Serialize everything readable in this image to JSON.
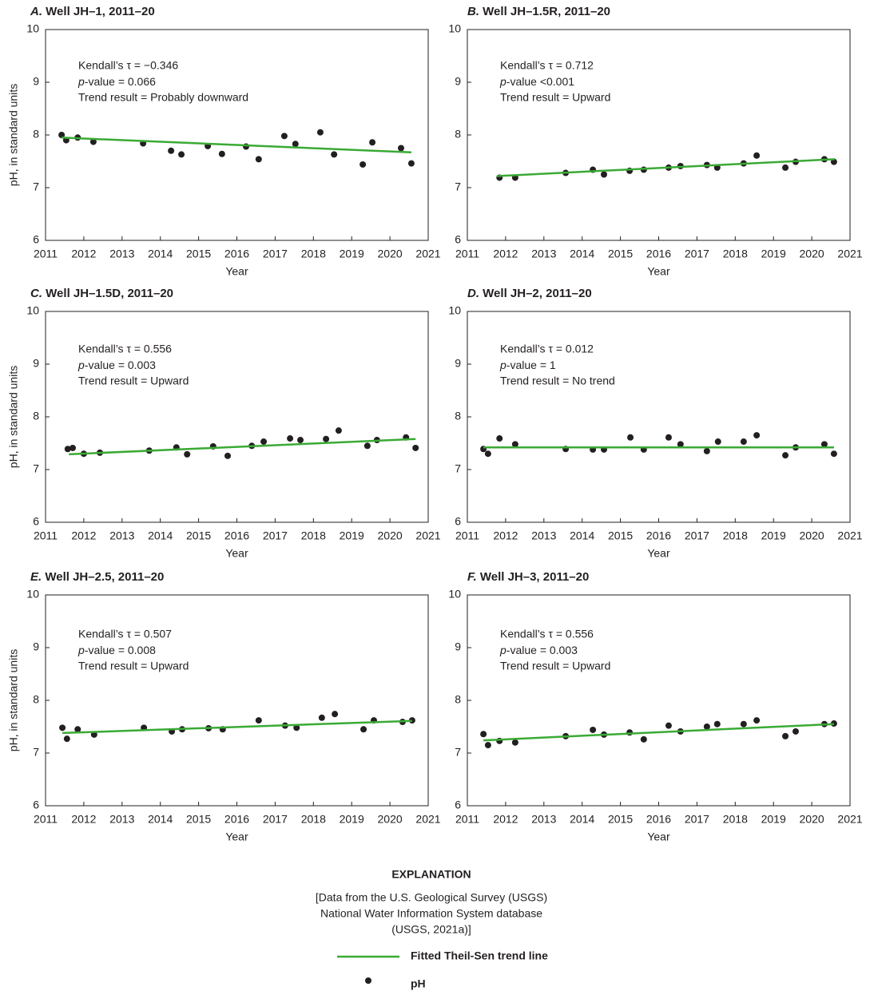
{
  "chart_data": [
    {
      "type": "scatter",
      "label": "A.",
      "title": "Well JH–1, 2011–20",
      "annotations": {
        "tau": "Kendall’s τ = −0.346",
        "p_symbol": "p",
        "p_text": "-value = 0.066",
        "trend": "Trend result = Probably downward"
      },
      "xlabel": "Year",
      "ylabel": "pH, in standard units",
      "xlim": [
        2011,
        2021
      ],
      "ylim": [
        6,
        10
      ],
      "xticks": [
        2011,
        2012,
        2013,
        2014,
        2015,
        2016,
        2017,
        2018,
        2019,
        2020,
        2021
      ],
      "yticks": [
        6,
        7,
        8,
        9,
        10
      ],
      "series": [
        {
          "type": "scatter",
          "color": "#231f20",
          "x": [
            2011.42,
            2011.54,
            2011.84,
            2012.25,
            2013.55,
            2014.28,
            2014.55,
            2015.24,
            2015.61,
            2016.24,
            2016.57,
            2017.24,
            2017.53,
            2018.18,
            2018.54,
            2019.29,
            2019.54,
            2020.29,
            2020.56
          ],
          "values": [
            8.0,
            7.9,
            7.95,
            7.87,
            7.84,
            7.7,
            7.63,
            7.79,
            7.64,
            7.78,
            7.54,
            7.98,
            7.83,
            8.05,
            7.63,
            7.44,
            7.86,
            7.75,
            7.46
          ]
        },
        {
          "type": "line",
          "color": "#3aaa35",
          "x": [
            2011.42,
            2020.56
          ],
          "values": [
            7.95,
            7.67
          ]
        }
      ]
    },
    {
      "type": "scatter",
      "label": "B.",
      "title": "Well JH–1.5R, 2011–20",
      "annotations": {
        "tau": "Kendall’s τ = 0.712",
        "p_symbol": "p",
        "p_text": "-value <0.001",
        "trend": "Trend result = Upward"
      },
      "xlabel": "Year",
      "xlim": [
        2011,
        2021
      ],
      "ylim": [
        6,
        10
      ],
      "xticks": [
        2011,
        2012,
        2013,
        2014,
        2015,
        2016,
        2017,
        2018,
        2019,
        2020,
        2021
      ],
      "yticks": [
        6,
        7,
        8,
        9,
        10
      ],
      "series": [
        {
          "type": "scatter",
          "color": "#231f20",
          "x": [
            2011.84,
            2012.25,
            2013.57,
            2014.28,
            2014.57,
            2015.24,
            2015.61,
            2016.26,
            2016.57,
            2017.26,
            2017.53,
            2018.22,
            2018.56,
            2019.31,
            2019.58,
            2020.33,
            2020.58
          ],
          "values": [
            7.19,
            7.19,
            7.28,
            7.34,
            7.25,
            7.32,
            7.34,
            7.38,
            7.41,
            7.43,
            7.38,
            7.46,
            7.61,
            7.38,
            7.49,
            7.54,
            7.49
          ]
        },
        {
          "type": "line",
          "color": "#3aaa35",
          "x": [
            2011.77,
            2020.6
          ],
          "values": [
            7.22,
            7.54
          ]
        }
      ]
    },
    {
      "type": "scatter",
      "label": "C.",
      "title": "Well JH–1.5D, 2011–20",
      "annotations": {
        "tau": "Kendall’s τ = 0.556",
        "p_symbol": "p",
        "p_text": "-value = 0.003",
        "trend": "Trend result = Upward"
      },
      "xlabel": "Year",
      "ylabel": "pH, in standard units",
      "xlim": [
        2011,
        2021
      ],
      "ylim": [
        6,
        10
      ],
      "xticks": [
        2011,
        2012,
        2013,
        2014,
        2015,
        2016,
        2017,
        2018,
        2019,
        2020,
        2021
      ],
      "yticks": [
        6,
        7,
        8,
        9,
        10
      ],
      "series": [
        {
          "type": "scatter",
          "color": "#231f20",
          "x": [
            2011.58,
            2011.71,
            2012.0,
            2012.42,
            2013.71,
            2014.42,
            2014.7,
            2015.38,
            2015.76,
            2016.39,
            2016.7,
            2017.39,
            2017.66,
            2018.33,
            2018.66,
            2019.41,
            2019.66,
            2020.42,
            2020.67
          ],
          "values": [
            7.39,
            7.41,
            7.3,
            7.32,
            7.36,
            7.42,
            7.29,
            7.44,
            7.26,
            7.45,
            7.53,
            7.59,
            7.56,
            7.58,
            7.74,
            7.45,
            7.56,
            7.61,
            7.41
          ]
        },
        {
          "type": "line",
          "color": "#3aaa35",
          "x": [
            2011.61,
            2020.67
          ],
          "values": [
            7.29,
            7.58
          ]
        }
      ]
    },
    {
      "type": "scatter",
      "label": "D.",
      "title": "Well JH–2, 2011–20",
      "annotations": {
        "tau": "Kendall’s τ = 0.012",
        "p_symbol": "p",
        "p_text": "-value = 1",
        "trend": "Trend result = No trend"
      },
      "xlabel": "Year",
      "xlim": [
        2011,
        2021
      ],
      "ylim": [
        6,
        10
      ],
      "xticks": [
        2011,
        2012,
        2013,
        2014,
        2015,
        2016,
        2017,
        2018,
        2019,
        2020,
        2021
      ],
      "yticks": [
        6,
        7,
        8,
        9,
        10
      ],
      "series": [
        {
          "type": "scatter",
          "color": "#231f20",
          "x": [
            2011.42,
            2011.54,
            2011.84,
            2012.25,
            2013.57,
            2014.28,
            2014.57,
            2015.26,
            2015.61,
            2016.26,
            2016.57,
            2017.26,
            2017.55,
            2018.22,
            2018.56,
            2019.31,
            2019.58,
            2020.33,
            2020.58
          ],
          "values": [
            7.39,
            7.3,
            7.59,
            7.48,
            7.39,
            7.38,
            7.38,
            7.61,
            7.38,
            7.61,
            7.48,
            7.35,
            7.53,
            7.53,
            7.65,
            7.27,
            7.42,
            7.48,
            7.3
          ]
        },
        {
          "type": "line",
          "color": "#3aaa35",
          "x": [
            2011.42,
            2020.58
          ],
          "values": [
            7.42,
            7.42
          ]
        }
      ]
    },
    {
      "type": "scatter",
      "label": "E.",
      "title": "Well JH–2.5, 2011–20",
      "annotations": {
        "tau": "Kendall’s τ = 0.507",
        "p_symbol": "p",
        "p_text": "-value = 0.008",
        "trend": "Trend result = Upward"
      },
      "xlabel": "Year",
      "ylabel": "pH, in standard units",
      "xlim": [
        2011,
        2021
      ],
      "ylim": [
        6,
        10
      ],
      "xticks": [
        2011,
        2012,
        2013,
        2014,
        2015,
        2016,
        2017,
        2018,
        2019,
        2020,
        2021
      ],
      "yticks": [
        6,
        7,
        8,
        9,
        10
      ],
      "series": [
        {
          "type": "scatter",
          "color": "#231f20",
          "x": [
            2011.44,
            2011.56,
            2011.84,
            2012.27,
            2013.57,
            2014.3,
            2014.57,
            2015.26,
            2015.63,
            2016.57,
            2017.26,
            2017.56,
            2018.22,
            2018.56,
            2019.31,
            2019.58,
            2020.33,
            2020.58
          ],
          "values": [
            7.48,
            7.27,
            7.45,
            7.35,
            7.48,
            7.41,
            7.45,
            7.47,
            7.45,
            7.62,
            7.52,
            7.48,
            7.67,
            7.74,
            7.45,
            7.62,
            7.59,
            7.62
          ]
        },
        {
          "type": "line",
          "color": "#3aaa35",
          "x": [
            2011.44,
            2020.58
          ],
          "values": [
            7.38,
            7.61
          ]
        }
      ]
    },
    {
      "type": "scatter",
      "label": "F.",
      "title": "Well JH–3, 2011–20",
      "annotations": {
        "tau": "Kendall’s τ = 0.556",
        "p_symbol": "p",
        "p_text": "-value = 0.003",
        "trend": "Trend result = Upward"
      },
      "xlabel": "Year",
      "xlim": [
        2011,
        2021
      ],
      "ylim": [
        6,
        10
      ],
      "xticks": [
        2011,
        2012,
        2013,
        2014,
        2015,
        2016,
        2017,
        2018,
        2019,
        2020,
        2021
      ],
      "yticks": [
        6,
        7,
        8,
        9,
        10
      ],
      "series": [
        {
          "type": "scatter",
          "color": "#231f20",
          "x": [
            2011.42,
            2011.54,
            2011.84,
            2012.25,
            2013.57,
            2014.28,
            2014.57,
            2015.24,
            2015.61,
            2016.26,
            2016.57,
            2017.26,
            2017.53,
            2018.22,
            2018.56,
            2019.31,
            2019.58,
            2020.33,
            2020.58
          ],
          "values": [
            7.36,
            7.15,
            7.23,
            7.2,
            7.32,
            7.44,
            7.35,
            7.39,
            7.26,
            7.52,
            7.41,
            7.5,
            7.55,
            7.55,
            7.62,
            7.32,
            7.41,
            7.55,
            7.56
          ]
        },
        {
          "type": "line",
          "color": "#3aaa35",
          "x": [
            2011.42,
            2020.58
          ],
          "values": [
            7.24,
            7.55
          ]
        }
      ]
    }
  ],
  "explanation": {
    "title": "EXPLANATION",
    "note": [
      "[Data from the U.S. Geological Survey (USGS)",
      "National Water Information System database",
      "(USGS, 2021a)]"
    ],
    "legend": [
      {
        "label": "Fitted Theil-Sen trend line",
        "color": "#3aaa35",
        "symbol": "line"
      },
      {
        "label": "pH",
        "color": "#231f20",
        "symbol": "point"
      }
    ]
  }
}
